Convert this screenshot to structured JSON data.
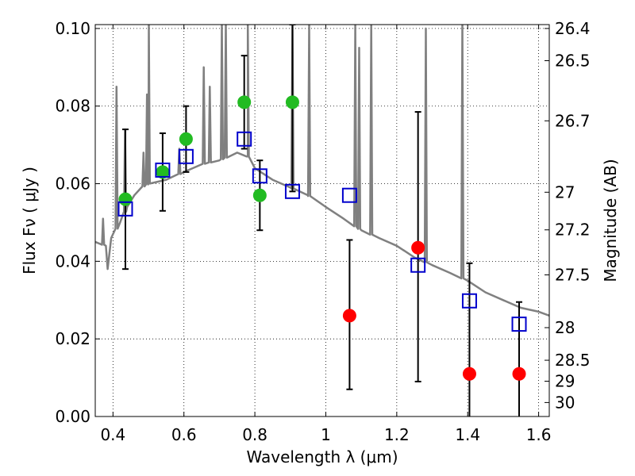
{
  "chart_data": {
    "type": "scatter",
    "xlabel": "Wavelength  λ (μm)",
    "ylabel": "Flux  Fν  ( μJy )",
    "y2label": "Magnitude (AB)",
    "xlim": [
      0.35,
      1.63
    ],
    "ylim": [
      0.0,
      0.101
    ],
    "grid": true,
    "x_ticks": [
      "0.4",
      "0.6",
      "0.8",
      "1",
      "1.2",
      "1.4",
      "1.6"
    ],
    "y_ticks": [
      "0.00",
      "0.02",
      "0.04",
      "0.06",
      "0.08",
      "0.10"
    ],
    "y2_ticks": [
      {
        "label": "26.4",
        "flux": 0.1
      },
      {
        "label": "26.5",
        "flux": 0.0917
      },
      {
        "label": "26.7",
        "flux": 0.0762
      },
      {
        "label": "27",
        "flux": 0.0578
      },
      {
        "label": "27.2",
        "flux": 0.0481
      },
      {
        "label": "27.5",
        "flux": 0.0365
      },
      {
        "label": "28",
        "flux": 0.0229
      },
      {
        "label": "28.5",
        "flux": 0.0145
      },
      {
        "label": "29",
        "flux": 0.0091
      },
      {
        "label": "30",
        "flux": 0.0036
      }
    ],
    "colors": {
      "model": "#808080",
      "green": "#22bb22",
      "red": "#ff0000",
      "square": "#0000cc",
      "grid": "#000000"
    },
    "model_sed": {
      "name": "model spectrum",
      "continuum": [
        [
          0.35,
          0.045
        ],
        [
          0.38,
          0.044
        ],
        [
          0.385,
          0.038
        ],
        [
          0.395,
          0.046
        ],
        [
          0.42,
          0.05
        ],
        [
          0.44,
          0.054
        ],
        [
          0.46,
          0.057
        ],
        [
          0.48,
          0.059
        ],
        [
          0.5,
          0.06
        ],
        [
          0.55,
          0.061
        ],
        [
          0.6,
          0.063
        ],
        [
          0.65,
          0.065
        ],
        [
          0.7,
          0.066
        ],
        [
          0.75,
          0.068
        ],
        [
          0.78,
          0.067
        ],
        [
          0.8,
          0.064
        ],
        [
          0.85,
          0.061
        ],
        [
          0.9,
          0.059
        ],
        [
          0.95,
          0.057
        ],
        [
          1.0,
          0.054
        ],
        [
          1.05,
          0.051
        ],
        [
          1.1,
          0.048
        ],
        [
          1.15,
          0.046
        ],
        [
          1.2,
          0.044
        ],
        [
          1.25,
          0.041
        ],
        [
          1.3,
          0.039
        ],
        [
          1.35,
          0.037
        ],
        [
          1.4,
          0.035
        ],
        [
          1.45,
          0.032
        ],
        [
          1.5,
          0.03
        ],
        [
          1.55,
          0.028
        ],
        [
          1.6,
          0.027
        ],
        [
          1.63,
          0.026
        ]
      ],
      "emission_lines": [
        {
          "x": 0.372,
          "peak": 0.051
        },
        {
          "x": 0.41,
          "peak": 0.085
        },
        {
          "x": 0.434,
          "peak": 0.074
        },
        {
          "x": 0.486,
          "peak": 0.068
        },
        {
          "x": 0.496,
          "peak": 0.083
        },
        {
          "x": 0.501,
          "peak": 0.101
        },
        {
          "x": 0.587,
          "peak": 0.069
        },
        {
          "x": 0.656,
          "peak": 0.09
        },
        {
          "x": 0.673,
          "peak": 0.085
        },
        {
          "x": 0.707,
          "peak": 0.101
        },
        {
          "x": 0.718,
          "peak": 0.101
        },
        {
          "x": 0.78,
          "peak": 0.101
        },
        {
          "x": 0.906,
          "peak": 0.101
        },
        {
          "x": 0.953,
          "peak": 0.101
        },
        {
          "x": 1.083,
          "peak": 0.101
        },
        {
          "x": 1.094,
          "peak": 0.095
        },
        {
          "x": 1.128,
          "peak": 0.101
        },
        {
          "x": 1.282,
          "peak": 0.1
        },
        {
          "x": 1.385,
          "peak": 0.101
        }
      ]
    },
    "series": [
      {
        "name": "green points",
        "marker": "circle",
        "color": "#22bb22",
        "points": [
          {
            "x": 0.435,
            "y": 0.056,
            "err_lo": 0.038,
            "err_hi": 0.074
          },
          {
            "x": 0.54,
            "y": 0.063,
            "err_lo": 0.053,
            "err_hi": 0.073
          },
          {
            "x": 0.606,
            "y": 0.0715,
            "err_lo": 0.063,
            "err_hi": 0.08
          },
          {
            "x": 0.77,
            "y": 0.081,
            "err_lo": 0.069,
            "err_hi": 0.093
          },
          {
            "x": 0.814,
            "y": 0.057,
            "err_lo": 0.048,
            "err_hi": 0.066
          },
          {
            "x": 0.906,
            "y": 0.081,
            "err_lo": 0.058,
            "err_hi": 0.101
          }
        ]
      },
      {
        "name": "red points",
        "marker": "circle",
        "color": "#ff0000",
        "points": [
          {
            "x": 1.067,
            "y": 0.026,
            "err_lo": 0.007,
            "err_hi": 0.0455
          },
          {
            "x": 1.26,
            "y": 0.0435,
            "err_lo": 0.009,
            "err_hi": 0.0785
          },
          {
            "x": 1.405,
            "y": 0.011,
            "err_lo": 0.0,
            "err_hi": 0.0395
          },
          {
            "x": 1.545,
            "y": 0.011,
            "err_lo": 0.0,
            "err_hi": 0.0295
          }
        ]
      },
      {
        "name": "model photometry",
        "marker": "square",
        "color": "#0000cc",
        "points": [
          {
            "x": 0.435,
            "y": 0.0535
          },
          {
            "x": 0.54,
            "y": 0.0635
          },
          {
            "x": 0.606,
            "y": 0.067
          },
          {
            "x": 0.77,
            "y": 0.0715
          },
          {
            "x": 0.814,
            "y": 0.062
          },
          {
            "x": 0.906,
            "y": 0.058
          },
          {
            "x": 1.067,
            "y": 0.057
          },
          {
            "x": 1.26,
            "y": 0.039
          },
          {
            "x": 1.405,
            "y": 0.0298
          },
          {
            "x": 1.545,
            "y": 0.0238
          }
        ]
      }
    ]
  }
}
